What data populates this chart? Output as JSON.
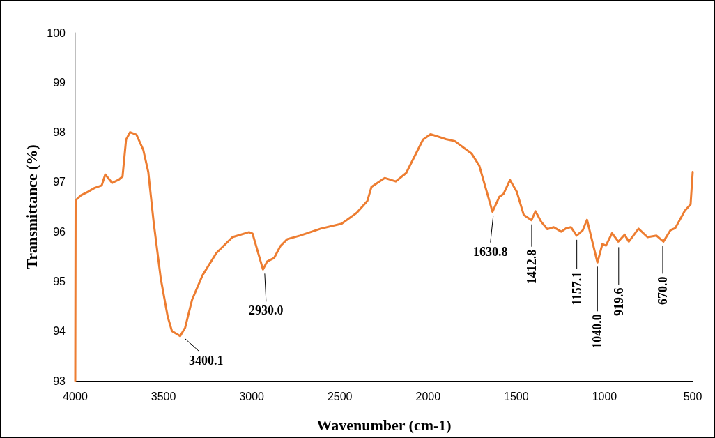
{
  "chart_data": {
    "type": "line",
    "xlabel": "Wavenumber (cm-1)",
    "ylabel": "Transmittance (%)",
    "xlim": [
      4000,
      500
    ],
    "xticks": [
      4000,
      3500,
      3000,
      2500,
      2000,
      1500,
      1000,
      500
    ],
    "ylim": [
      93,
      100
    ],
    "yticks": [
      93,
      94,
      95,
      96,
      97,
      98,
      99,
      100
    ],
    "grid": false,
    "marker": "none",
    "line_style": "solid",
    "series": [
      {
        "color": "#ed7d31",
        "x": [
          4000,
          3998,
          3968,
          3929,
          3890,
          3850,
          3830,
          3791,
          3752,
          3732,
          3712,
          3689,
          3653,
          3614,
          3586,
          3555,
          3515,
          3476,
          3452,
          3405,
          3377,
          3338,
          3279,
          3200,
          3109,
          3015,
          2995,
          2936,
          2912,
          2873,
          2837,
          2798,
          2727,
          2609,
          2490,
          2404,
          2344,
          2321,
          2246,
          2183,
          2124,
          2029,
          1986,
          1899,
          1848,
          1753,
          1710,
          1635,
          1596,
          1572,
          1536,
          1497,
          1458,
          1414,
          1391,
          1359,
          1324,
          1288,
          1245,
          1217,
          1190,
          1158,
          1123,
          1099,
          1040,
          1012,
          992,
          957,
          922,
          886,
          862,
          807,
          756,
          705,
          666,
          626,
          599,
          545,
          512,
          500
        ],
        "values": [
          93,
          96.63,
          96.73,
          96.8,
          96.88,
          96.93,
          97.15,
          96.98,
          97.05,
          97.11,
          97.85,
          98.0,
          97.95,
          97.64,
          97.2,
          96.17,
          95.05,
          94.29,
          94.0,
          93.9,
          94.07,
          94.63,
          95.12,
          95.57,
          95.89,
          95.99,
          95.96,
          95.24,
          95.4,
          95.47,
          95.71,
          95.85,
          95.92,
          96.06,
          96.16,
          96.38,
          96.62,
          96.9,
          97.08,
          97.01,
          97.18,
          97.85,
          97.96,
          97.86,
          97.82,
          97.57,
          97.33,
          96.4,
          96.7,
          96.76,
          97.04,
          96.8,
          96.34,
          96.23,
          96.41,
          96.2,
          96.05,
          96.09,
          96.0,
          96.07,
          96.09,
          95.92,
          96.03,
          96.24,
          95.38,
          95.75,
          95.72,
          95.97,
          95.8,
          95.94,
          95.8,
          96.06,
          95.89,
          95.92,
          95.8,
          96.03,
          96.07,
          96.42,
          96.55,
          97.2
        ]
      }
    ],
    "annotations": [
      {
        "text": "3400.1",
        "x": 3400.1,
        "y": 93.9
      },
      {
        "text": "2930.0",
        "x": 2930.0,
        "y": 95.24
      },
      {
        "text": "1630.8",
        "x": 1630.8,
        "y": 96.4
      },
      {
        "text": "1412.8",
        "x": 1412.8,
        "y": 96.23
      },
      {
        "text": "1157.1",
        "x": 1157.1,
        "y": 95.92
      },
      {
        "text": "1040.0",
        "x": 1040.0,
        "y": 95.38
      },
      {
        "text": "919.6",
        "x": 919.6,
        "y": 95.8
      },
      {
        "text": "670.0",
        "x": 670.0,
        "y": 95.8
      }
    ]
  }
}
